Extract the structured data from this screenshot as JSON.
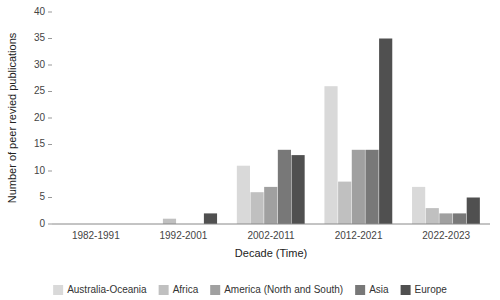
{
  "chart_data": {
    "type": "bar",
    "xlabel": "Decade (Time)",
    "ylabel": "Number of peer revied publications",
    "categories": [
      "1982-1991",
      "1992-2001",
      "2002-2011",
      "2012-2021",
      "2022-2023"
    ],
    "series": [
      {
        "name": "Australia-Oceania",
        "color": "#d9d9d9",
        "values": [
          0,
          0,
          11,
          26,
          7
        ]
      },
      {
        "name": "Africa",
        "color": "#c0c0c0",
        "values": [
          0,
          1,
          6,
          8,
          3
        ]
      },
      {
        "name": "America (North and South)",
        "color": "#a0a0a0",
        "values": [
          0,
          0,
          7,
          14,
          2
        ]
      },
      {
        "name": "Asia",
        "color": "#787878",
        "values": [
          0,
          0,
          14,
          14,
          2
        ]
      },
      {
        "name": "Europe",
        "color": "#505050",
        "values": [
          0,
          2,
          13,
          35,
          5
        ]
      }
    ],
    "ylim": [
      0,
      40
    ],
    "yticks": [
      0,
      5,
      10,
      15,
      20,
      25,
      30,
      35,
      40
    ],
    "grid": false,
    "legend": "bottom"
  }
}
